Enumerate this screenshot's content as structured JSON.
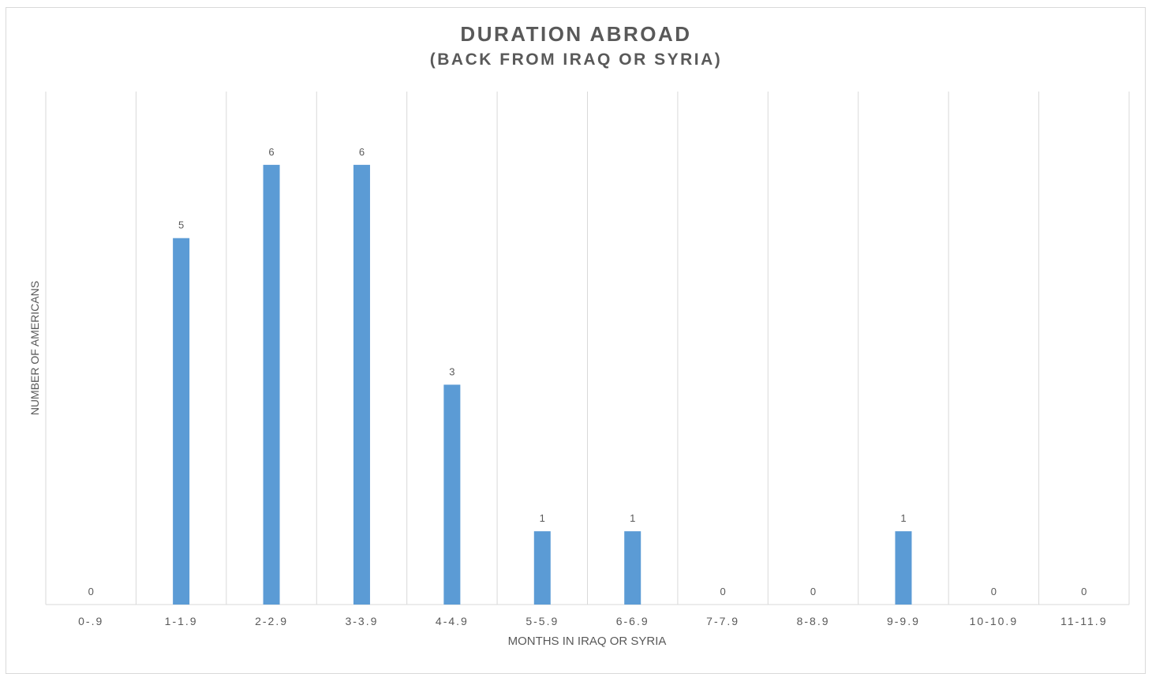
{
  "chart_data": {
    "type": "bar",
    "title": "DURATION ABROAD",
    "subtitle": "(BACK FROM IRAQ OR SYRIA)",
    "xlabel": "MONTHS IN IRAQ OR SYRIA",
    "ylabel": "NUMBER OF AMERICANS",
    "categories": [
      "0-.9",
      "1-1.9",
      "2-2.9",
      "3-3.9",
      "4-4.9",
      "5-5.9",
      "6-6.9",
      "7-7.9",
      "8-8.9",
      "9-9.9",
      "10-10.9",
      "11-11.9"
    ],
    "values": [
      0,
      5,
      6,
      6,
      3,
      1,
      1,
      0,
      0,
      1,
      0,
      0
    ],
    "ylim": [
      0,
      7
    ],
    "data_labels": true,
    "grid": "vertical category separators",
    "legend": "none",
    "bar_color": "#5b9bd5",
    "text_color": "#595959",
    "grid_color": "#d9d9d9"
  }
}
